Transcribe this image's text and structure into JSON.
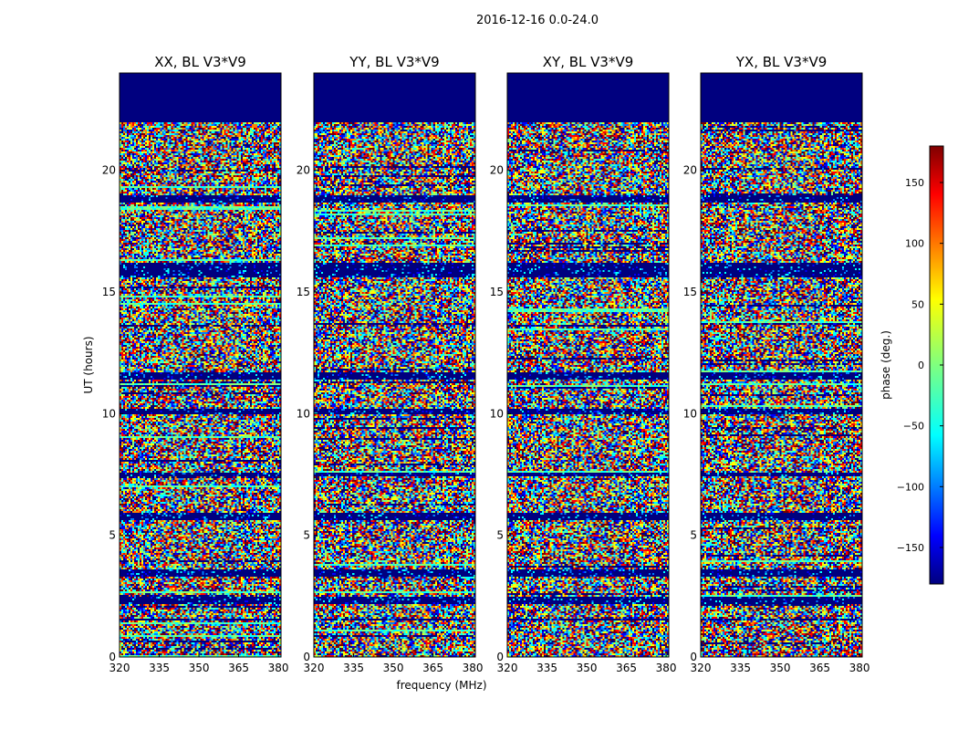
{
  "chart_data": {
    "type": "heatmap",
    "suptitle": "2016-12-16 0.0-24.0",
    "xlabel": "frequency (MHz)",
    "ylabel": "UT (hours)",
    "colorbar_label": "phase (deg.)",
    "colorbar_ticks": [
      150,
      100,
      50,
      0,
      -50,
      -100,
      -150
    ],
    "colorbar_ticks_text": [
      "150",
      "100",
      "50",
      "0",
      "−50",
      "−100",
      "−150"
    ],
    "colorbar_range": [
      -180,
      180
    ],
    "colormap": "jet",
    "xlim": [
      320,
      381
    ],
    "ylim": [
      0,
      24
    ],
    "x_ticks": [
      320,
      335,
      350,
      365,
      380
    ],
    "x_ticks_text": [
      "320",
      "335",
      "350",
      "365",
      "380"
    ],
    "y_ticks": [
      0,
      5,
      10,
      15,
      20
    ],
    "y_ticks_text": [
      "0",
      "5",
      "10",
      "15",
      "20"
    ],
    "no_data_hours": [
      22,
      24
    ],
    "flagged_bands_hours": [
      [
        15.6,
        16.2
      ],
      [
        11.4,
        11.7
      ],
      [
        10.0,
        10.2
      ],
      [
        5.6,
        5.9
      ],
      [
        3.3,
        3.6
      ],
      [
        2.2,
        2.5
      ],
      [
        18.7,
        19.0
      ],
      [
        1.5,
        1.6
      ],
      [
        7.4,
        7.6
      ]
    ],
    "panels": [
      {
        "title": "XX, BL V3*V9",
        "polarization": "XX"
      },
      {
        "title": "YY, BL V3*V9",
        "polarization": "YY"
      },
      {
        "title": "XY, BL V3*V9",
        "polarization": "XY"
      },
      {
        "title": "YX, BL V3*V9",
        "polarization": "YX"
      }
    ],
    "colors": {
      "no_data": "#00007f",
      "jet": [
        "#00007f",
        "#0000ff",
        "#007fff",
        "#00ffff",
        "#7fff7f",
        "#ffff00",
        "#ff7f00",
        "#ff0000",
        "#7f0000"
      ]
    }
  }
}
